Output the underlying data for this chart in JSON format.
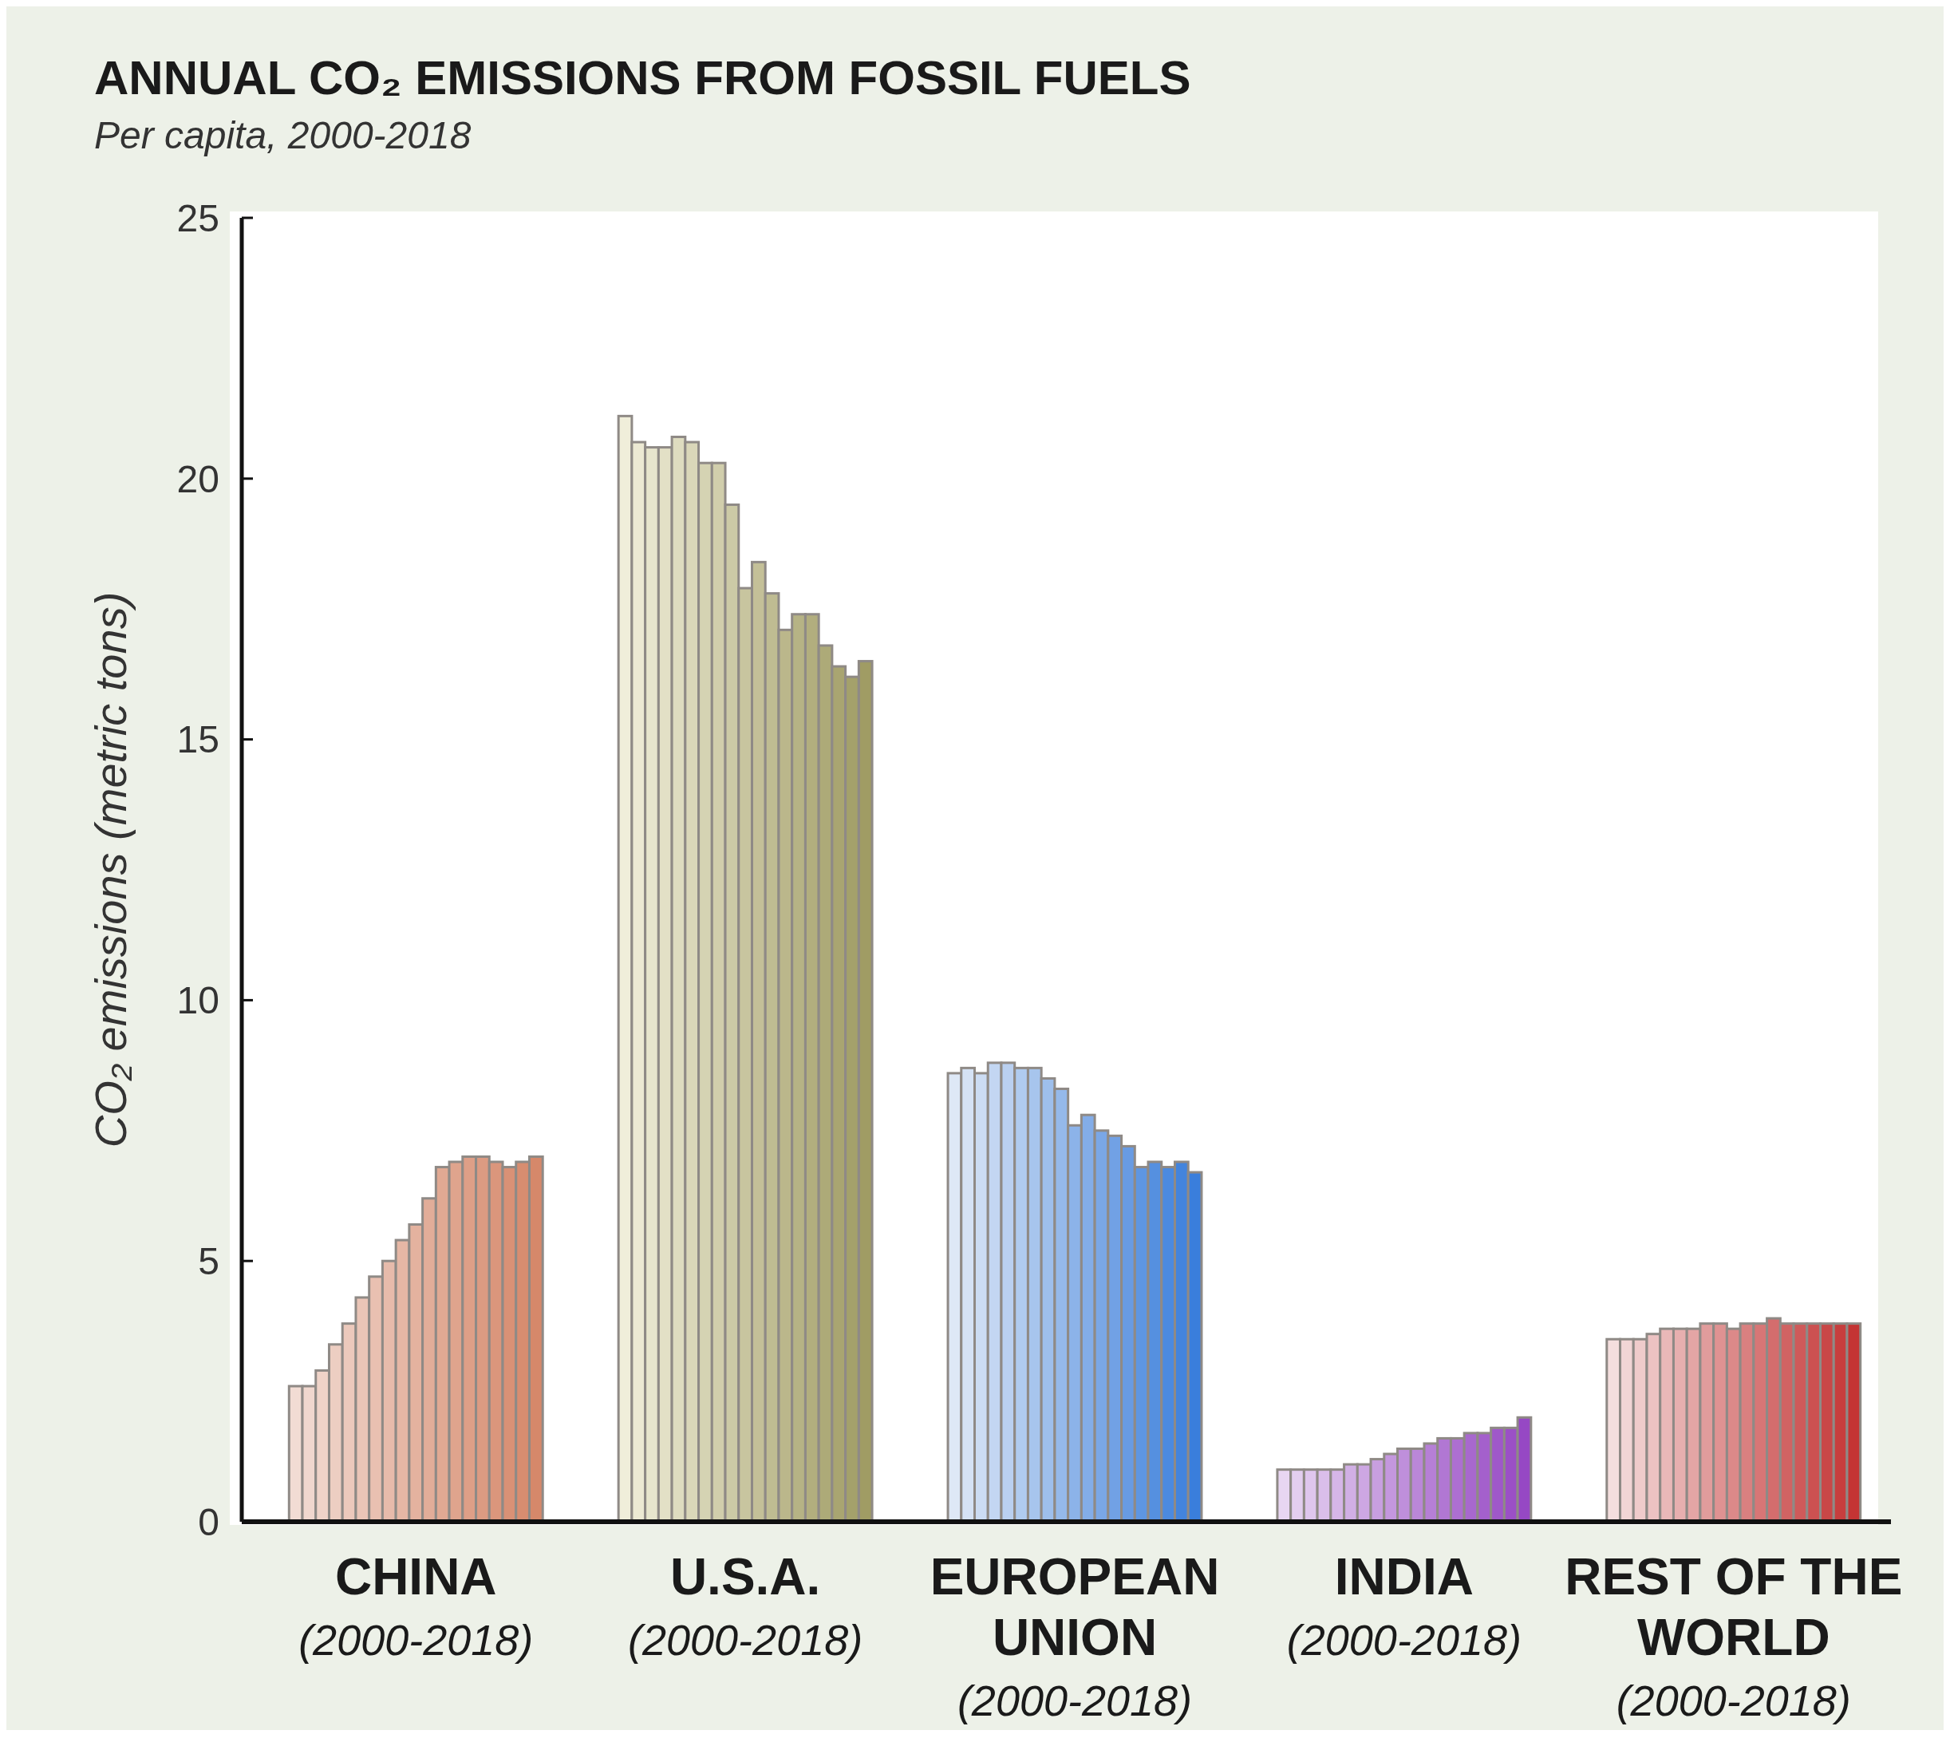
{
  "chart_data": {
    "type": "bar",
    "title": "ANNUAL CO₂ EMISSIONS FROM FOSSIL FUELS",
    "subtitle": "Per capita, 2000-2018",
    "ylabel": "CO₂ emissions (metric tons)",
    "categories": [
      "CHINA\n(2000-2018)",
      "U.S.A.\n(2000-2018)",
      "EUROPEAN\nUNION\n(2000-2018)",
      "INDIA\n(2000-2018)",
      "REST OF THE\nWORLD\n(2000-2018)"
    ],
    "ylim": [
      0,
      25
    ],
    "yticks": [
      0,
      5,
      10,
      15,
      20,
      25
    ],
    "series": [
      {
        "values": [
          2.6,
          21.2,
          8.6,
          1.0,
          3.5
        ],
        "colors": [
          "#f2dcd4",
          "#f0eeda",
          "#dee8f6",
          "#e8d6f2",
          "#f4dede"
        ]
      },
      {
        "values": [
          2.6,
          20.7,
          8.7,
          1.0,
          3.5
        ],
        "colors": [
          "#f0d7ce",
          "#ece9d3",
          "#d5e2f5",
          "#e3ceef",
          "#f1d5d5"
        ]
      },
      {
        "values": [
          2.9,
          20.6,
          8.6,
          1.0,
          3.5
        ],
        "colors": [
          "#efd3c8",
          "#e7e5cd",
          "#ccdcf3",
          "#dfc6ed",
          "#efcbcb"
        ]
      },
      {
        "values": [
          3.4,
          20.6,
          8.8,
          1.0,
          3.6
        ],
        "colors": [
          "#edcec2",
          "#e3e0c6",
          "#c3d6f2",
          "#dabeea",
          "#ecc2c2"
        ]
      },
      {
        "values": [
          3.8,
          20.8,
          8.8,
          1.0,
          3.7
        ],
        "colors": [
          "#ecc9bc",
          "#dedcc0",
          "#bad0f0",
          "#d6b6e8",
          "#e9b8b8"
        ]
      },
      {
        "values": [
          4.3,
          20.7,
          8.7,
          1.1,
          3.7
        ],
        "colors": [
          "#eac5b7",
          "#dad7b9",
          "#b0cbef",
          "#d1afe5",
          "#e7afaf"
        ]
      },
      {
        "values": [
          4.7,
          20.3,
          8.7,
          1.1,
          3.7
        ],
        "colors": [
          "#e9c0b1",
          "#d5d3b3",
          "#a7c5ed",
          "#cda7e3",
          "#e4a5a5"
        ]
      },
      {
        "values": [
          5.0,
          20.3,
          8.5,
          1.2,
          3.8
        ],
        "colors": [
          "#e7bbab",
          "#d1ceac",
          "#9ebfec",
          "#c89fe0",
          "#e19c9c"
        ]
      },
      {
        "values": [
          5.4,
          19.5,
          8.3,
          1.3,
          3.8
        ],
        "colors": [
          "#e6b7a5",
          "#cccaa6",
          "#95b9ea",
          "#c497de",
          "#df9292"
        ]
      },
      {
        "values": [
          5.7,
          17.9,
          7.6,
          1.4,
          3.7
        ],
        "colors": [
          "#e4b29f",
          "#c8c59f",
          "#8cb3e9",
          "#bf8fdb",
          "#dc8989"
        ]
      },
      {
        "values": [
          6.2,
          18.4,
          7.8,
          1.4,
          3.8
        ],
        "colors": [
          "#e2ad99",
          "#c4c098",
          "#83ade8",
          "#ba87d8",
          "#d98080"
        ]
      },
      {
        "values": [
          6.8,
          17.8,
          7.5,
          1.5,
          3.8
        ],
        "colors": [
          "#e1a993",
          "#bfbc92",
          "#7aa7e6",
          "#b67fd6",
          "#d77676"
        ]
      },
      {
        "values": [
          6.9,
          17.1,
          7.4,
          1.6,
          3.9
        ],
        "colors": [
          "#dfa48d",
          "#bbb78b",
          "#71a1e5",
          "#b177d3",
          "#d46d6d"
        ]
      },
      {
        "values": [
          7.0,
          17.4,
          7.2,
          1.6,
          3.8
        ],
        "colors": [
          "#de9f87",
          "#b6b385",
          "#689be3",
          "#ad6fd1",
          "#d16363"
        ]
      },
      {
        "values": [
          7.0,
          17.4,
          6.8,
          1.7,
          3.8
        ],
        "colors": [
          "#dc9b82",
          "#b2ae7e",
          "#5e96e2",
          "#a868ce",
          "#cf5a5a"
        ]
      },
      {
        "values": [
          6.9,
          16.8,
          6.9,
          1.7,
          3.8
        ],
        "colors": [
          "#db967c",
          "#adaa78",
          "#5590e0",
          "#a460cc",
          "#cc5151"
        ]
      },
      {
        "values": [
          6.8,
          16.4,
          6.8,
          1.8,
          3.8
        ],
        "colors": [
          "#d99176",
          "#a9a571",
          "#4c8adf",
          "#9f58c9",
          "#c94747"
        ]
      },
      {
        "values": [
          6.9,
          16.2,
          6.9,
          1.8,
          3.8
        ],
        "colors": [
          "#d88d70",
          "#a4a16b",
          "#4384dd",
          "#9b50c6",
          "#c73e3e"
        ]
      },
      {
        "values": [
          7.0,
          16.5,
          6.7,
          2.0,
          3.8
        ],
        "colors": [
          "#d6886a",
          "#a09c64",
          "#3a7edc",
          "#9648c4",
          "#c43434"
        ]
      }
    ]
  }
}
